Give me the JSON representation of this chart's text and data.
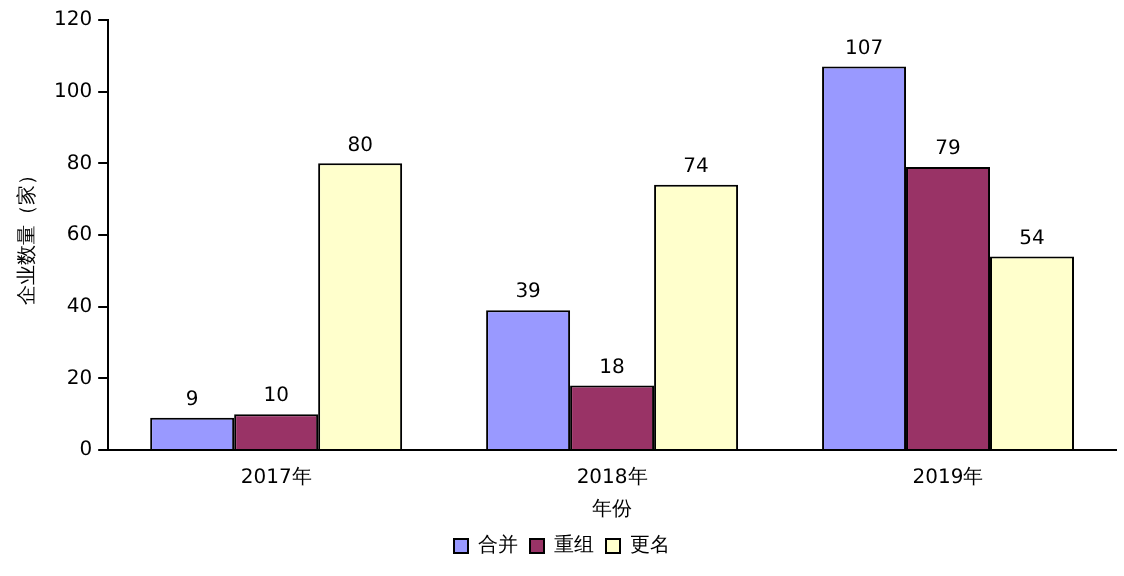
{
  "chart_data": {
    "type": "bar",
    "xlabel": "年份",
    "ylabel": "企业数量（家）",
    "categories": [
      "2017年",
      "2018年",
      "2019年"
    ],
    "series": [
      {
        "name": "合并",
        "color": "#9999ff",
        "values": [
          9,
          39,
          107
        ]
      },
      {
        "name": "重组",
        "color": "#993366",
        "values": [
          10,
          18,
          79
        ]
      },
      {
        "name": "更名",
        "color": "#ffffcc",
        "values": [
          80,
          74,
          54
        ]
      }
    ],
    "ylim": [
      0,
      120
    ],
    "yticks": [
      0,
      20,
      40,
      60,
      80,
      100,
      120
    ],
    "grid": false,
    "legend": "bottom",
    "data_labels": true
  }
}
